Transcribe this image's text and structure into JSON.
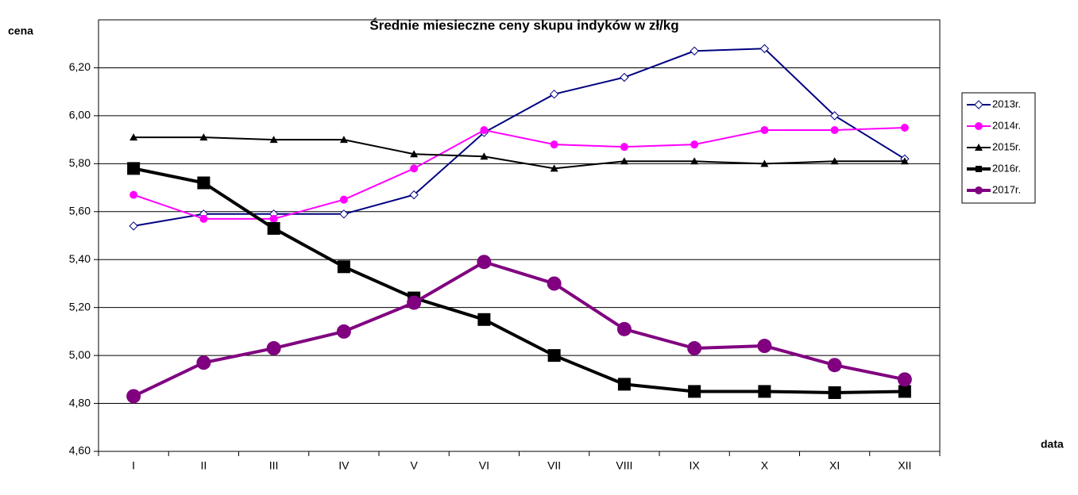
{
  "chart_data": {
    "type": "line",
    "title": "Średnie miesieczne ceny skupu indyków w zł/kg",
    "y_label": "cena",
    "x_label": "data",
    "categories": [
      "I",
      "II",
      "III",
      "IV",
      "V",
      "VI",
      "VII",
      "VIII",
      "IX",
      "X",
      "XI",
      "XII"
    ],
    "ylim": [
      4.6,
      6.4
    ],
    "yticks": [
      {
        "value": 4.6,
        "label": "4,60"
      },
      {
        "value": 4.8,
        "label": "4,80"
      },
      {
        "value": 5.0,
        "label": "5,00"
      },
      {
        "value": 5.2,
        "label": "5,20"
      },
      {
        "value": 5.4,
        "label": "5,40"
      },
      {
        "value": 5.6,
        "label": "5,60"
      },
      {
        "value": 5.8,
        "label": "5,80"
      },
      {
        "value": 6.0,
        "label": "6,00"
      },
      {
        "value": 6.2,
        "label": "6,20"
      }
    ],
    "grid": true,
    "legend": "right",
    "series": [
      {
        "name": "2013r.",
        "color": "#000080",
        "marker": "diamond-open",
        "width": 2,
        "values": [
          5.54,
          5.59,
          5.59,
          5.59,
          5.67,
          5.93,
          6.09,
          6.16,
          6.27,
          6.28,
          6.0,
          5.82
        ]
      },
      {
        "name": "2014r.",
        "color": "#ff00ff",
        "marker": "circle",
        "width": 2,
        "values": [
          5.67,
          5.57,
          5.57,
          5.65,
          5.78,
          5.94,
          5.88,
          5.87,
          5.88,
          5.94,
          5.94,
          5.95
        ]
      },
      {
        "name": "2015r.",
        "color": "#000000",
        "marker": "triangle",
        "width": 2,
        "values": [
          5.91,
          5.91,
          5.9,
          5.9,
          5.84,
          5.83,
          5.78,
          5.81,
          5.81,
          5.8,
          5.81,
          5.81
        ]
      },
      {
        "name": "2016r.",
        "color": "#000000",
        "marker": "square",
        "width": 4,
        "values": [
          5.78,
          5.72,
          5.53,
          5.37,
          5.24,
          5.15,
          5.0,
          4.88,
          4.85,
          4.85,
          4.845,
          4.85
        ]
      },
      {
        "name": "2017r.",
        "color": "#800080",
        "marker": "big-circle",
        "width": 4,
        "values": [
          4.83,
          4.97,
          5.03,
          5.1,
          5.22,
          5.39,
          5.3,
          5.11,
          5.03,
          5.04,
          4.96,
          4.9
        ]
      }
    ]
  }
}
